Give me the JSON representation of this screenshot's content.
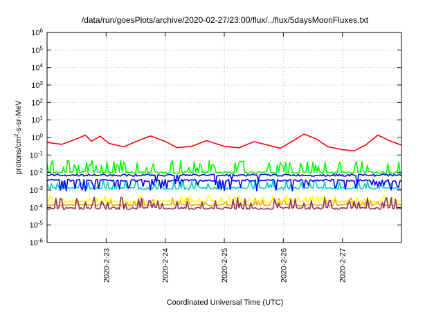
{
  "chart_data": {
    "type": "line",
    "title": "/data/run/goesPlots/archive/2020-02-27/23:00/flux/../flux/5daysMoonFluxes.txt",
    "xlabel": "Coordinated Universal Time (UTC)",
    "ylabel": "protons/cm2-s-sr-MeV",
    "ylabel_parts": {
      "pre": "protons/cm",
      "sup": "2",
      "post": "-s-sr-MeV"
    },
    "y_scale": "log",
    "ylim_exp": [
      -6,
      6
    ],
    "ytick_exponents": [
      "-6",
      "-5",
      "-4",
      "-3",
      "-2",
      "-1",
      "0",
      "1",
      "2",
      "3",
      "4",
      "5",
      "6"
    ],
    "ytick_base": "10",
    "xlim": [
      "2020-02-22 00:00",
      "2020-02-28 00:00"
    ],
    "xtick_labels": [
      "2020-2-23",
      "2020-2-24",
      "2020-2-25",
      "2020-2-26",
      "2020-2-27"
    ],
    "xtick_positions_days": [
      1,
      2,
      3,
      4,
      5
    ],
    "grid": true,
    "x_days_span": 6,
    "series": [
      {
        "color": "#ff0000",
        "points_log10": [
          [
            0.0,
            -0.3
          ],
          [
            0.25,
            -0.4
          ],
          [
            0.5,
            -0.1
          ],
          [
            0.65,
            0.1
          ],
          [
            0.75,
            -0.2
          ],
          [
            0.9,
            0.05
          ],
          [
            1.05,
            -0.3
          ],
          [
            1.3,
            -0.55
          ],
          [
            1.5,
            -0.2
          ],
          [
            1.75,
            0.1
          ],
          [
            2.0,
            -0.2
          ],
          [
            2.2,
            -0.6
          ],
          [
            2.45,
            -0.5
          ],
          [
            2.7,
            -0.15
          ],
          [
            3.0,
            -0.5
          ],
          [
            3.25,
            -0.6
          ],
          [
            3.5,
            -0.2
          ],
          [
            3.75,
            -0.45
          ],
          [
            3.95,
            -0.6
          ],
          [
            4.15,
            -0.2
          ],
          [
            4.35,
            0.2
          ],
          [
            4.55,
            -0.1
          ],
          [
            4.75,
            -0.5
          ],
          [
            5.0,
            -0.7
          ],
          [
            5.2,
            -0.8
          ],
          [
            5.4,
            -0.4
          ],
          [
            5.6,
            0.15
          ],
          [
            5.8,
            -0.2
          ],
          [
            6.0,
            -0.4
          ]
        ]
      },
      {
        "color": "#00ff00",
        "baseline_log10": -2.0,
        "spike_log10": -1.3
      },
      {
        "color": "#0000ff",
        "lines_log10": [
          -2.15,
          -2.45
        ],
        "dip_log10": -3.0
      },
      {
        "color": "#00ccbb",
        "baseline_log10": -2.9,
        "spike_log10": -2.4
      },
      {
        "color": "#ffff00",
        "baseline_log10": -3.65,
        "spike_log10": -3.3
      },
      {
        "color": "#ff9900",
        "baseline_log10": -3.85,
        "spike_log10": -3.45
      },
      {
        "color": "#883366",
        "baseline_log10": -4.05,
        "spike_log10": -3.4
      }
    ]
  }
}
